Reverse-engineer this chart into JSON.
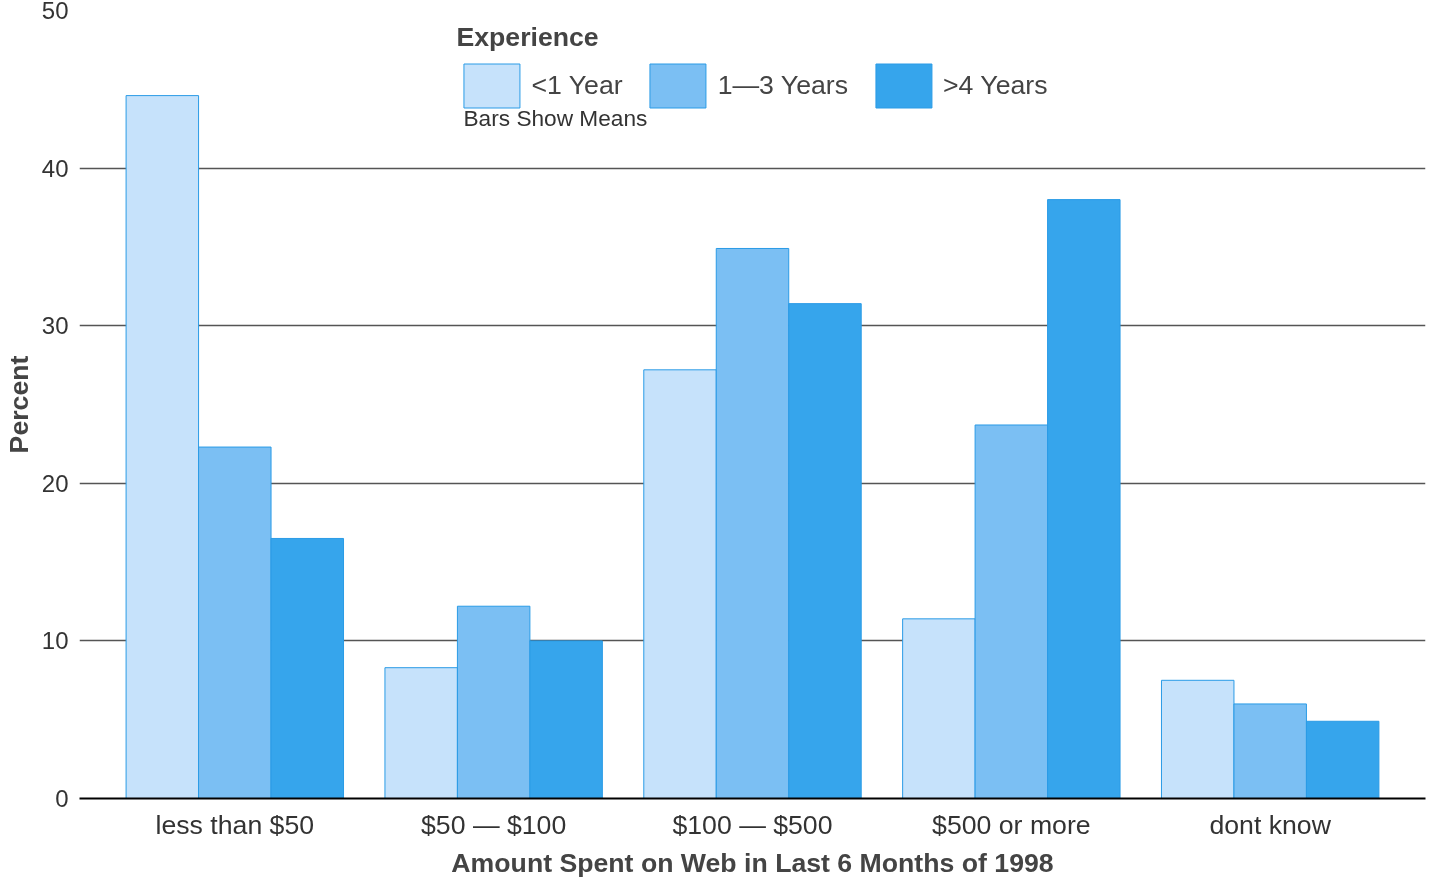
{
  "chart_data": {
    "type": "bar",
    "xlabel": "Amount Spent on Web in Last 6 Months of 1998",
    "ylabel": "Percent",
    "legend_title": "Experience",
    "annotations": [
      "Bars Show Means"
    ],
    "categories": [
      "less than $50",
      "$50 — $100",
      "$100 — $500",
      "$500 or more",
      "dont know"
    ],
    "series": [
      {
        "name": "<1 Year",
        "color": "#c6e2fb",
        "values": [
          44.6,
          8.3,
          27.2,
          11.4,
          7.5
        ]
      },
      {
        "name": "1—3 Years",
        "color": "#7bbff3",
        "values": [
          22.3,
          12.2,
          34.9,
          23.7,
          6.0
        ]
      },
      {
        "name": ">4 Years",
        "color": "#36a5ec",
        "values": [
          16.5,
          10.0,
          31.4,
          38.0,
          4.9
        ]
      }
    ],
    "ylim": [
      0,
      50
    ],
    "yticks": [
      0,
      10,
      20,
      30,
      40,
      50
    ],
    "grid": "y",
    "legend": "top"
  }
}
